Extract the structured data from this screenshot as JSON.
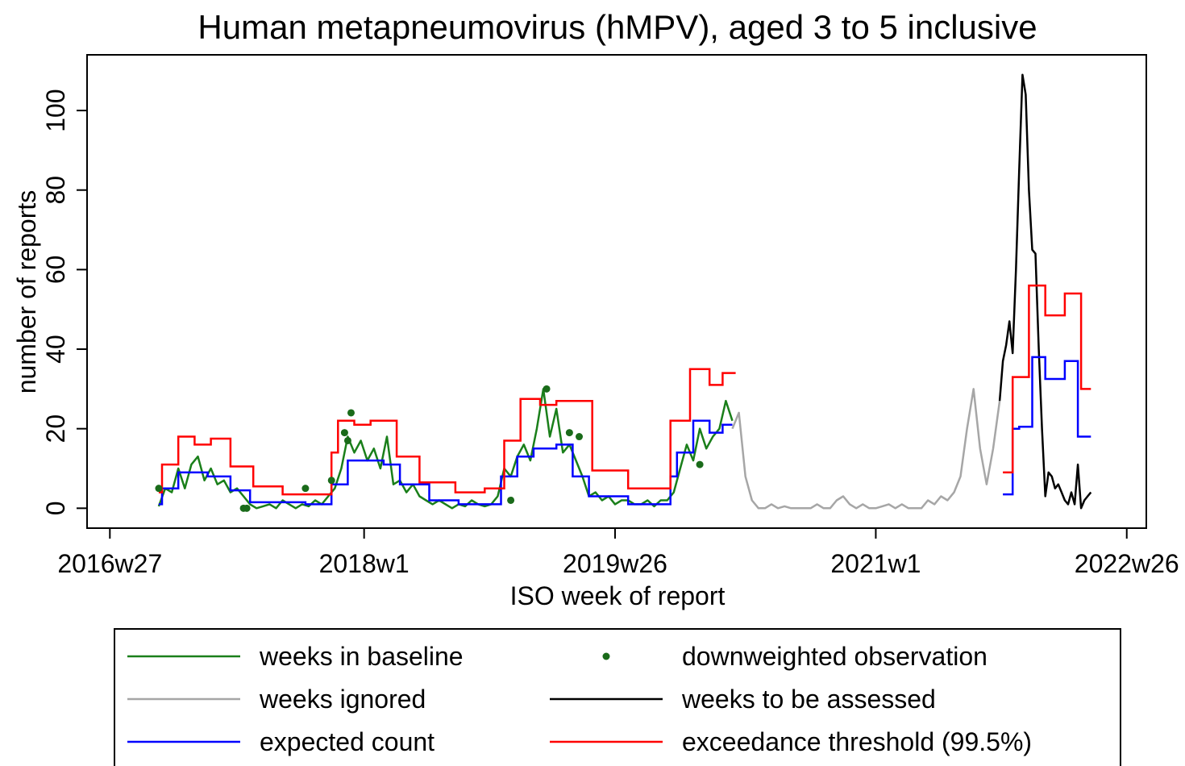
{
  "chart_data": {
    "type": "line",
    "title": "Human metapneumovirus (hMPV), aged 3 to 5 inclusive",
    "x_label": "ISO week of report",
    "y_label": "number of reports",
    "xlim": [
      -7,
      318
    ],
    "ylim": [
      -5,
      114
    ],
    "xticks": [
      {
        "value": 0,
        "label": "2016w27"
      },
      {
        "value": 78,
        "label": "2018w1"
      },
      {
        "value": 155,
        "label": "2019w26"
      },
      {
        "value": 235,
        "label": "2021w1"
      },
      {
        "value": 312,
        "label": "2022w26"
      }
    ],
    "yticks": [
      0,
      20,
      40,
      60,
      80,
      100
    ],
    "grid": false,
    "legend": "bottom",
    "series": [
      {
        "name": "weeks in baseline",
        "color": "#1a7f1a",
        "style": "line",
        "x": [
          15,
          17,
          19,
          21,
          23,
          25,
          27,
          29,
          31,
          33,
          35,
          37,
          39,
          41,
          43,
          45,
          47,
          49,
          51,
          53,
          55,
          57,
          59,
          61,
          63,
          65,
          67,
          69,
          71,
          73,
          75,
          77,
          79,
          81,
          83,
          85,
          87,
          89,
          91,
          93,
          95,
          97,
          99,
          101,
          103,
          105,
          107,
          109,
          111,
          113,
          115,
          117,
          119,
          121,
          123,
          125,
          127,
          129,
          131,
          133,
          135,
          137,
          139,
          141,
          143,
          145,
          147,
          149,
          151,
          153,
          155,
          157,
          159,
          161,
          163,
          165,
          167,
          169,
          171,
          173,
          175,
          177,
          179,
          181,
          183,
          185,
          187,
          189,
          191
        ],
        "values": [
          0.5,
          5,
          4,
          10,
          5,
          11,
          13,
          7,
          10,
          6,
          7,
          4,
          5,
          3,
          1,
          0,
          0.5,
          1,
          0,
          2,
          1,
          0,
          1,
          0.5,
          2,
          1,
          3,
          5,
          10,
          18,
          14,
          17,
          12,
          15,
          10,
          18,
          6,
          7,
          4,
          6,
          3,
          2,
          1,
          2,
          1,
          0,
          1,
          0.5,
          2,
          1,
          0.5,
          1,
          3,
          10,
          8,
          13,
          16,
          12,
          20,
          30,
          18,
          25,
          14,
          16,
          12,
          8,
          3,
          4,
          2,
          3,
          1,
          2,
          2,
          1,
          1,
          2,
          0.5,
          2,
          2,
          4,
          10,
          16,
          12,
          20,
          15,
          18,
          20,
          27,
          22
        ]
      },
      {
        "name": "downweighted observation",
        "color": "#1a6b1a",
        "style": "points",
        "x": [
          15,
          41,
          42,
          60,
          68,
          72,
          73,
          74,
          123,
          134,
          141,
          144,
          181
        ],
        "values": [
          5,
          0,
          0,
          5,
          7,
          19,
          17,
          24,
          2,
          30,
          19,
          18,
          11
        ]
      },
      {
        "name": "weeks ignored",
        "color": "#a6a6a6",
        "style": "line",
        "x": [
          191,
          193,
          195,
          197,
          199,
          201,
          203,
          205,
          207,
          209,
          211,
          213,
          215,
          217,
          219,
          221,
          223,
          225,
          227,
          229,
          231,
          233,
          235,
          237,
          239,
          241,
          243,
          245,
          247,
          249,
          251,
          253,
          255,
          257,
          259,
          261,
          263,
          265,
          267,
          269,
          271,
          273
        ],
        "values": [
          20,
          24,
          8,
          2,
          0,
          0,
          1,
          0,
          0.5,
          0,
          0,
          0,
          0,
          1,
          0,
          0,
          2,
          3,
          1,
          0,
          1,
          0,
          0,
          0.5,
          1,
          0,
          1,
          0,
          0,
          0,
          2,
          1,
          3,
          2,
          4,
          8,
          20,
          30,
          15,
          6,
          15,
          27
        ]
      },
      {
        "name": "weeks to be assessed",
        "color": "#000000",
        "style": "line",
        "x": [
          273,
          274,
          275,
          276,
          277,
          278,
          279,
          280,
          281,
          282,
          283,
          284,
          285,
          286,
          287,
          288,
          289,
          290,
          291,
          292,
          293,
          294,
          295,
          296,
          297,
          298,
          299,
          300,
          301
        ],
        "values": [
          27,
          37,
          41,
          47,
          39,
          60,
          85,
          109,
          104,
          80,
          65,
          64,
          40,
          20,
          3,
          9,
          8,
          5,
          6,
          4,
          2,
          1,
          4,
          1,
          11,
          0,
          2,
          3,
          4
        ]
      },
      {
        "name": "expected count",
        "color": "#0000ff",
        "style": "step",
        "x": [
          15,
          16,
          21,
          30,
          37,
          43,
          60,
          68,
          73,
          84,
          89,
          98,
          107,
          120,
          125,
          130,
          137,
          142,
          147,
          159,
          172,
          174,
          179,
          184,
          188,
          191,
          232,
          274,
          277,
          279,
          283,
          287,
          293,
          297,
          301
        ],
        "values": [
          1,
          5,
          9,
          8,
          4.5,
          1.5,
          1,
          6,
          12,
          11,
          6,
          2,
          1,
          8,
          13,
          15,
          16,
          8,
          3,
          1,
          8,
          14,
          22,
          19,
          21,
          21,
          null,
          3.5,
          20,
          20.5,
          38,
          32.5,
          37,
          18,
          18
        ]
      },
      {
        "name": "exceedance threshold (99.5%)",
        "color": "#ff0000",
        "style": "step",
        "x": [
          15,
          16,
          21,
          26,
          31,
          37,
          44,
          53,
          68,
          70,
          75,
          80,
          88,
          95,
          106,
          115,
          121,
          126,
          132,
          137,
          148,
          159,
          172,
          178,
          184,
          188,
          192,
          232,
          274,
          277,
          282,
          287,
          293,
          298,
          301
        ],
        "values": [
          4,
          11,
          18,
          16,
          17.5,
          10.5,
          5.5,
          3.5,
          14,
          22,
          21,
          22,
          13,
          6.5,
          4,
          5,
          17,
          27.5,
          26,
          27,
          9.5,
          5,
          22,
          35,
          31,
          34,
          34,
          null,
          9,
          33,
          56,
          48.5,
          54,
          30,
          30
        ]
      }
    ]
  }
}
